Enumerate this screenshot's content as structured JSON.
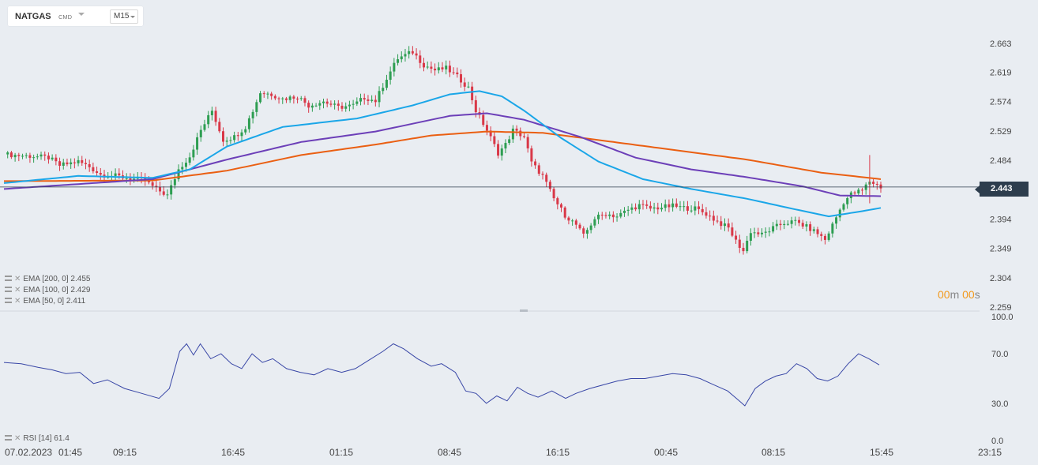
{
  "toolbar": {
    "symbol": "NATGAS",
    "exchange": "CMD",
    "timeframe": "M15"
  },
  "price_axis": {
    "ticks": [
      "2.663",
      "2.619",
      "2.574",
      "2.529",
      "2.484",
      "2.394",
      "2.349",
      "2.304",
      "2.259"
    ]
  },
  "last_price": "2.443",
  "rsi_axis": {
    "ticks": [
      "100.0",
      "70.0",
      "30.0",
      "0.0"
    ]
  },
  "time_axis": {
    "labels": [
      "07.02.2023",
      "01:45",
      "09:15",
      "16:45",
      "01:15",
      "08:45",
      "16:15",
      "00:45",
      "08:15",
      "15:45",
      "23:15"
    ]
  },
  "legend": {
    "ema200": "EMA [200, 0] 2.455",
    "ema100": "EMA [100, 0] 2.429",
    "ema50": "EMA [50, 0] 2.411",
    "rsi": "RSI [14] 61.4"
  },
  "timer": {
    "min": "00",
    "min_unit": "m",
    "sec": "00",
    "sec_unit": "s"
  },
  "colors": {
    "up": "#2e9e52",
    "down": "#d93848",
    "ema200": "#ea5f12",
    "ema100": "#6c3fb8",
    "ema50": "#1aa6e8",
    "rsi": "#3846a6",
    "last": "#2d3d4d"
  },
  "chart_data": [
    {
      "type": "candlestick",
      "title": "NATGAS",
      "timeframe": "M15",
      "ylim": [
        2.259,
        2.663
      ],
      "last": 2.443,
      "x_labels": [
        "07.02.2023 01:45",
        "09:15",
        "16:45",
        "01:15",
        "08:45",
        "16:15",
        "00:45",
        "08:15",
        "15:45",
        "23:15"
      ],
      "close_path": [
        [
          0,
          2.493
        ],
        [
          8,
          2.49
        ],
        [
          12,
          2.488
        ],
        [
          15,
          2.476
        ],
        [
          20,
          2.482
        ],
        [
          23,
          2.474
        ],
        [
          26,
          2.462
        ],
        [
          30,
          2.46
        ],
        [
          34,
          2.456
        ],
        [
          38,
          2.452
        ],
        [
          41,
          2.44
        ],
        [
          44,
          2.43
        ],
        [
          47,
          2.47
        ],
        [
          50,
          2.49
        ],
        [
          53,
          2.53
        ],
        [
          56,
          2.56
        ],
        [
          59,
          2.515
        ],
        [
          62,
          2.52
        ],
        [
          65,
          2.535
        ],
        [
          67,
          2.56
        ],
        [
          69,
          2.588
        ],
        [
          72,
          2.585
        ],
        [
          75,
          2.578
        ],
        [
          79,
          2.582
        ],
        [
          82,
          2.568
        ],
        [
          86,
          2.574
        ],
        [
          90,
          2.565
        ],
        [
          94,
          2.568
        ],
        [
          97,
          2.58
        ],
        [
          100,
          2.575
        ],
        [
          103,
          2.61
        ],
        [
          106,
          2.64
        ],
        [
          110,
          2.65
        ],
        [
          113,
          2.63
        ],
        [
          116,
          2.622
        ],
        [
          119,
          2.625
        ],
        [
          122,
          2.612
        ],
        [
          125,
          2.595
        ],
        [
          127,
          2.56
        ],
        [
          130,
          2.53
        ],
        [
          133,
          2.495
        ],
        [
          135,
          2.508
        ],
        [
          137,
          2.53
        ],
        [
          140,
          2.52
        ],
        [
          142,
          2.48
        ],
        [
          145,
          2.46
        ],
        [
          148,
          2.425
        ],
        [
          151,
          2.4
        ],
        [
          154,
          2.385
        ],
        [
          156,
          2.368
        ],
        [
          159,
          2.395
        ],
        [
          162,
          2.402
        ],
        [
          165,
          2.398
        ],
        [
          168,
          2.408
        ],
        [
          171,
          2.415
        ],
        [
          174,
          2.41
        ],
        [
          177,
          2.412
        ],
        [
          180,
          2.414
        ],
        [
          183,
          2.411
        ],
        [
          186,
          2.41
        ],
        [
          189,
          2.402
        ],
        [
          192,
          2.39
        ],
        [
          195,
          2.38
        ],
        [
          197,
          2.36
        ],
        [
          199,
          2.345
        ],
        [
          201,
          2.375
        ],
        [
          204,
          2.37
        ],
        [
          207,
          2.38
        ],
        [
          210,
          2.388
        ],
        [
          213,
          2.39
        ],
        [
          216,
          2.382
        ],
        [
          219,
          2.372
        ],
        [
          221,
          2.362
        ],
        [
          223,
          2.385
        ],
        [
          226,
          2.42
        ],
        [
          228,
          2.432
        ],
        [
          231,
          2.438
        ],
        [
          233,
          2.452
        ],
        [
          236,
          2.443
        ]
      ],
      "series": [
        {
          "name": "EMA [200, 0]",
          "last": 2.455,
          "path": [
            [
              0,
              2.452
            ],
            [
              40,
              2.453
            ],
            [
              60,
              2.468
            ],
            [
              80,
              2.492
            ],
            [
              100,
              2.508
            ],
            [
              115,
              2.522
            ],
            [
              130,
              2.528
            ],
            [
              145,
              2.526
            ],
            [
              160,
              2.515
            ],
            [
              180,
              2.5
            ],
            [
              200,
              2.485
            ],
            [
              220,
              2.465
            ],
            [
              236,
              2.455
            ]
          ]
        },
        {
          "name": "EMA [100, 0]",
          "last": 2.429,
          "path": [
            [
              0,
              2.44
            ],
            [
              40,
              2.455
            ],
            [
              60,
              2.485
            ],
            [
              80,
              2.512
            ],
            [
              100,
              2.528
            ],
            [
              110,
              2.54
            ],
            [
              120,
              2.552
            ],
            [
              130,
              2.556
            ],
            [
              140,
              2.546
            ],
            [
              155,
              2.52
            ],
            [
              170,
              2.488
            ],
            [
              185,
              2.47
            ],
            [
              200,
              2.458
            ],
            [
              215,
              2.444
            ],
            [
              225,
              2.43
            ],
            [
              236,
              2.429
            ]
          ]
        },
        {
          "name": "EMA [50, 0]",
          "last": 2.411,
          "path": [
            [
              0,
              2.449
            ],
            [
              20,
              2.46
            ],
            [
              40,
              2.457
            ],
            [
              50,
              2.47
            ],
            [
              60,
              2.505
            ],
            [
              75,
              2.535
            ],
            [
              95,
              2.548
            ],
            [
              110,
              2.568
            ],
            [
              120,
              2.585
            ],
            [
              128,
              2.59
            ],
            [
              134,
              2.582
            ],
            [
              140,
              2.56
            ],
            [
              150,
              2.518
            ],
            [
              160,
              2.482
            ],
            [
              172,
              2.455
            ],
            [
              185,
              2.44
            ],
            [
              200,
              2.425
            ],
            [
              212,
              2.41
            ],
            [
              222,
              2.398
            ],
            [
              230,
              2.405
            ],
            [
              236,
              2.411
            ]
          ]
        }
      ]
    },
    {
      "type": "line",
      "title": "RSI [14]",
      "ylim": [
        0,
        100
      ],
      "last": 61.4,
      "series": [
        {
          "name": "RSI [14]",
          "values": [
            [
              0,
              63
            ],
            [
              5,
              62
            ],
            [
              10,
              59
            ],
            [
              14,
              57
            ],
            [
              18,
              54
            ],
            [
              22,
              55
            ],
            [
              26,
              46
            ],
            [
              30,
              49
            ],
            [
              35,
              42
            ],
            [
              40,
              38
            ],
            [
              45,
              34
            ],
            [
              48,
              42
            ],
            [
              51,
              72
            ],
            [
              53,
              78
            ],
            [
              55,
              69
            ],
            [
              57,
              78
            ],
            [
              60,
              66
            ],
            [
              63,
              70
            ],
            [
              66,
              62
            ],
            [
              69,
              58
            ],
            [
              72,
              70
            ],
            [
              75,
              63
            ],
            [
              78,
              66
            ],
            [
              82,
              58
            ],
            [
              86,
              55
            ],
            [
              90,
              53
            ],
            [
              94,
              58
            ],
            [
              98,
              55
            ],
            [
              102,
              58
            ],
            [
              106,
              65
            ],
            [
              110,
              72
            ],
            [
              113,
              78
            ],
            [
              116,
              74
            ],
            [
              120,
              66
            ],
            [
              124,
              60
            ],
            [
              127,
              62
            ],
            [
              131,
              55
            ],
            [
              134,
              40
            ],
            [
              137,
              38
            ],
            [
              140,
              30
            ],
            [
              143,
              36
            ],
            [
              146,
              32
            ],
            [
              149,
              43
            ],
            [
              152,
              38
            ],
            [
              155,
              35
            ],
            [
              159,
              40
            ],
            [
              163,
              34
            ],
            [
              166,
              38
            ],
            [
              170,
              42
            ],
            [
              174,
              45
            ],
            [
              178,
              48
            ],
            [
              182,
              50
            ],
            [
              186,
              50
            ],
            [
              190,
              52
            ],
            [
              194,
              54
            ],
            [
              198,
              53
            ],
            [
              202,
              50
            ],
            [
              206,
              45
            ],
            [
              210,
              40
            ],
            [
              213,
              33
            ],
            [
              215,
              28
            ],
            [
              218,
              42
            ],
            [
              221,
              48
            ],
            [
              224,
              52
            ],
            [
              227,
              54
            ],
            [
              230,
              62
            ],
            [
              233,
              58
            ],
            [
              236,
              50
            ],
            [
              239,
              48
            ],
            [
              242,
              52
            ],
            [
              245,
              62
            ],
            [
              248,
              70
            ],
            [
              251,
              66
            ],
            [
              254,
              61
            ]
          ]
        }
      ]
    }
  ]
}
